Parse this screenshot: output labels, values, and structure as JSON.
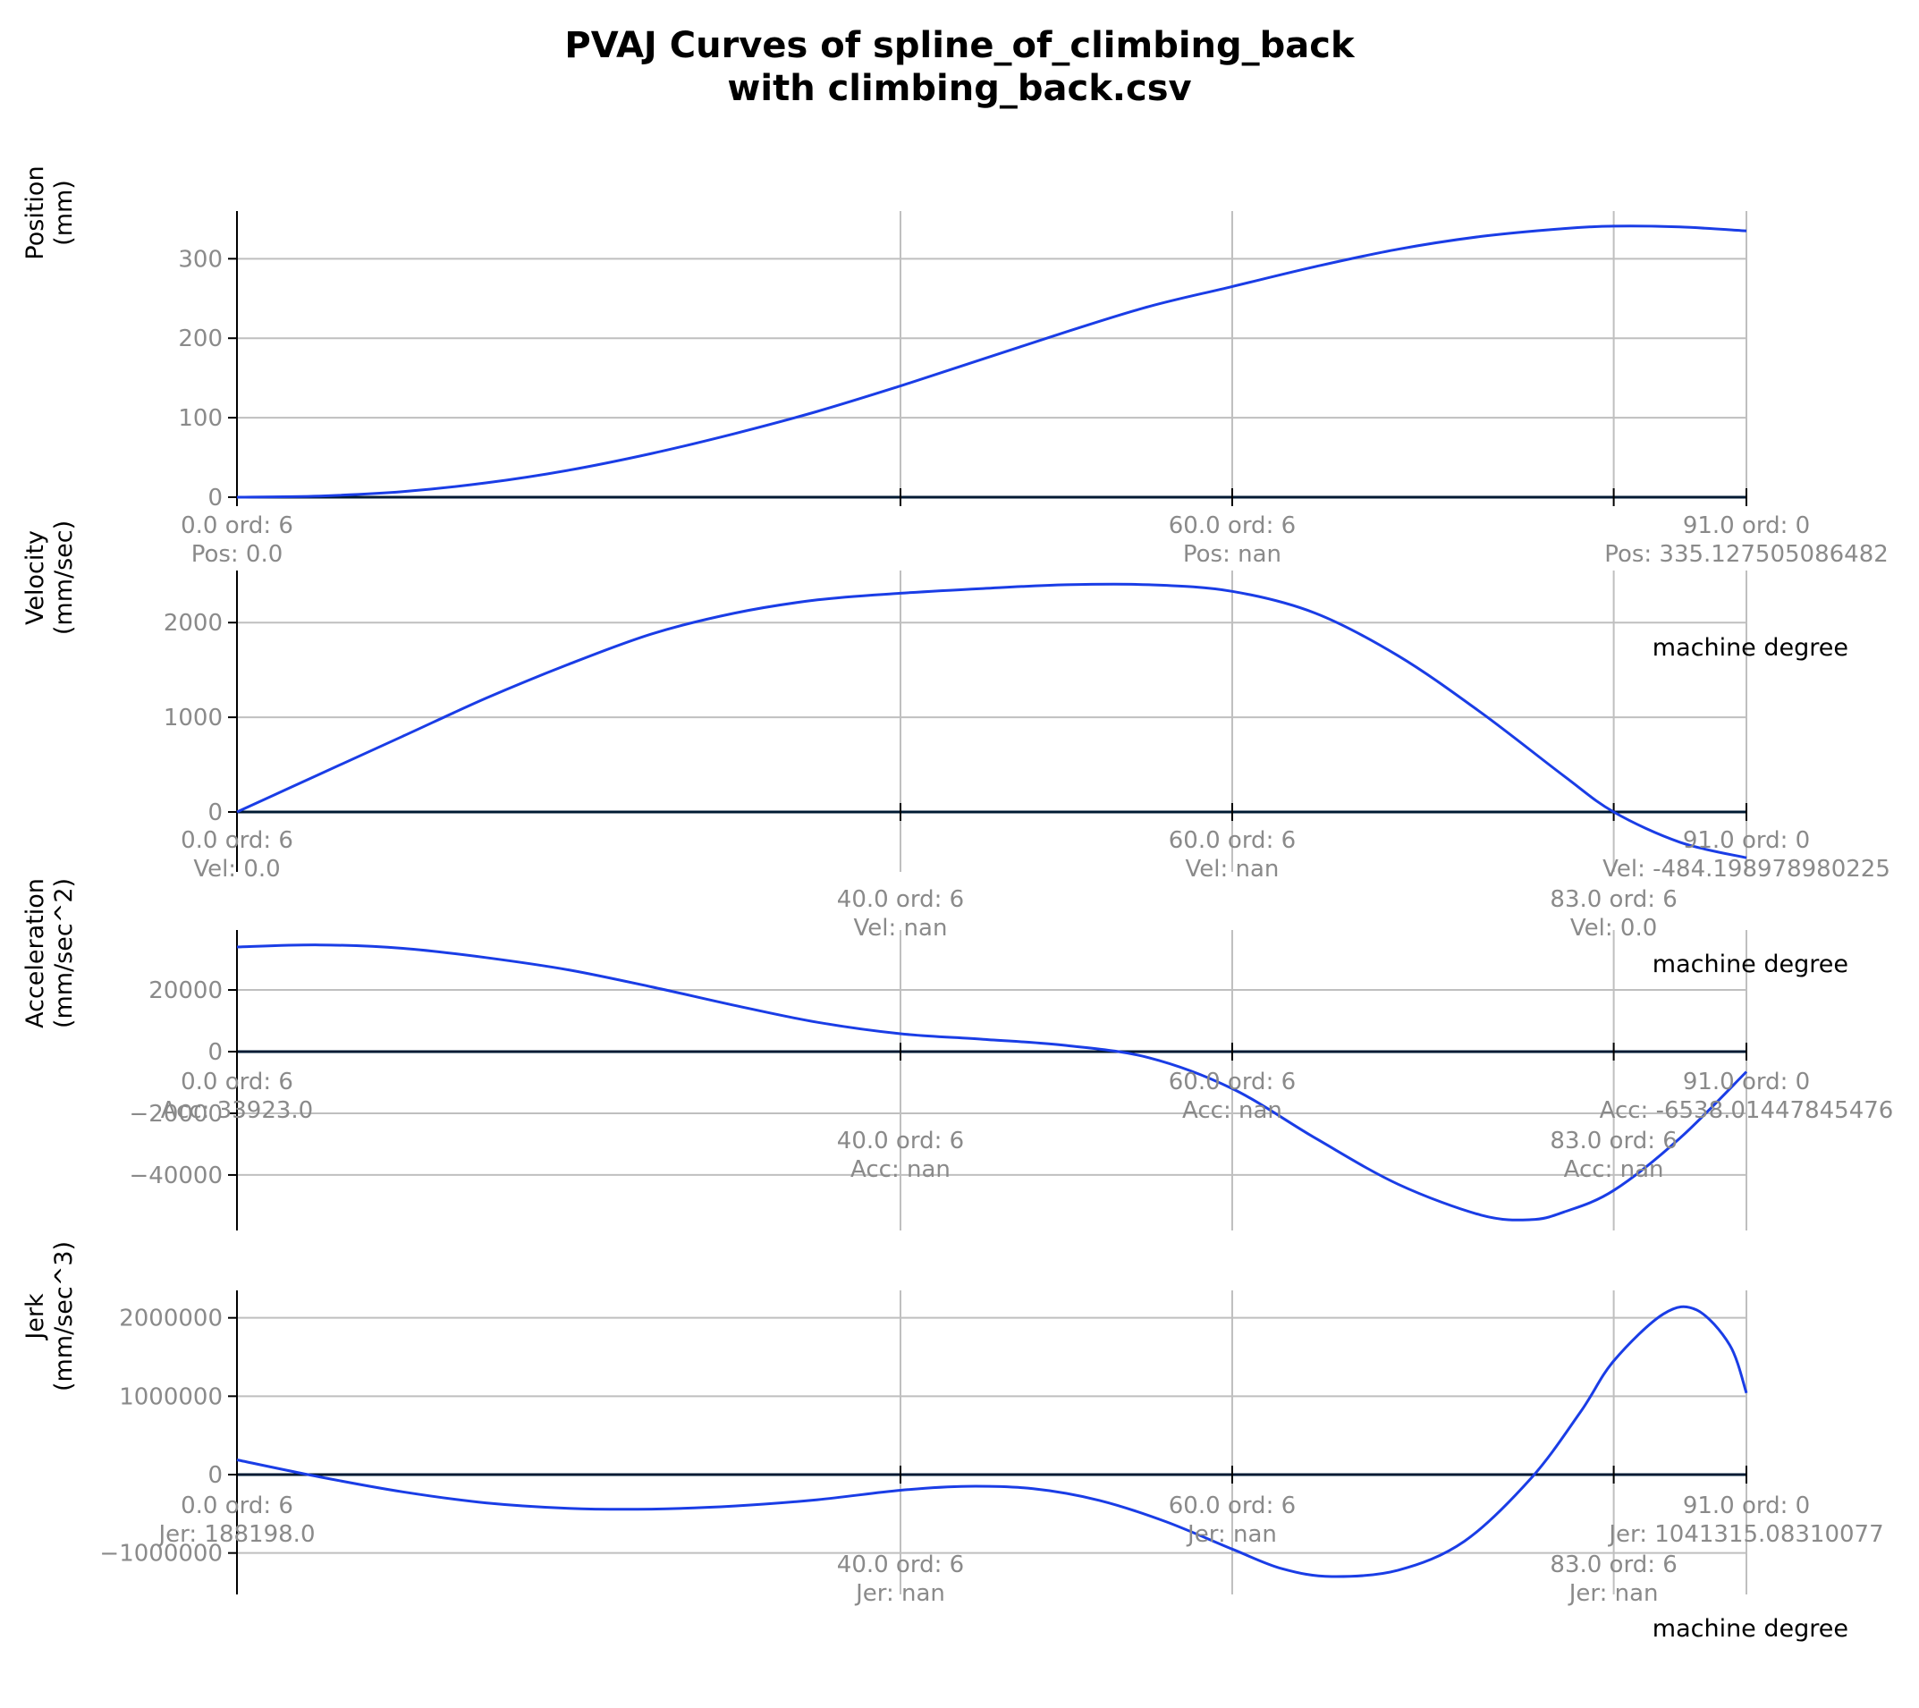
{
  "title_line1": "PVAJ Curves of spline_of_climbing_back",
  "title_line2": "with climbing_back.csv",
  "colors": {
    "curve": "#1a3de6",
    "grid": "#bfbfbf",
    "axis": "#000000",
    "zero_line": "#001a33",
    "label_gray": "#8a8a8a"
  },
  "chart_data": [
    {
      "type": "line",
      "ylabel": [
        "Position",
        "(mm)"
      ],
      "xlabel": "",
      "xlim": [
        0,
        91
      ],
      "ylim": [
        0,
        360
      ],
      "yticks": [
        0,
        100,
        200,
        300
      ],
      "ytick_labels": [
        "0",
        "100",
        "200",
        "300"
      ],
      "grid": true,
      "series": [
        {
          "values": [
            [
              0,
              0
            ],
            [
              5,
              1.5
            ],
            [
              10,
              7
            ],
            [
              15,
              18
            ],
            [
              20,
              34
            ],
            [
              25,
              55
            ],
            [
              30,
              80
            ],
            [
              35,
              108
            ],
            [
              40,
              140
            ],
            [
              45,
              174
            ],
            [
              50,
              208
            ],
            [
              55,
              240
            ],
            [
              60,
              265
            ],
            [
              65,
              290
            ],
            [
              70,
              312
            ],
            [
              75,
              328
            ],
            [
              80,
              338
            ],
            [
              83,
              341
            ],
            [
              87,
              340
            ],
            [
              91,
              335
            ]
          ]
        }
      ],
      "annotations": [
        {
          "x": 0,
          "lines": [
            "0.0 ord: 6",
            "Pos: 0.0"
          ]
        },
        {
          "x": 60,
          "lines": [
            "60.0 ord: 6",
            "Pos: nan"
          ]
        },
        {
          "x": 91,
          "lines": [
            "91.0 ord: 0",
            "Pos: 335.127505086482"
          ]
        }
      ]
    },
    {
      "type": "line",
      "ylabel": [
        "Velocity",
        "(mm/sec)"
      ],
      "xlabel": "machine degree",
      "xlim": [
        0,
        91
      ],
      "ylim": [
        -500,
        2550
      ],
      "yticks": [
        0,
        1000,
        2000
      ],
      "ytick_labels": [
        "0",
        "1000",
        "2000"
      ],
      "grid": true,
      "series": [
        {
          "values": [
            [
              0,
              0
            ],
            [
              5,
              400
            ],
            [
              10,
              800
            ],
            [
              15,
              1200
            ],
            [
              20,
              1560
            ],
            [
              25,
              1880
            ],
            [
              30,
              2100
            ],
            [
              35,
              2240
            ],
            [
              40,
              2310
            ],
            [
              45,
              2360
            ],
            [
              50,
              2400
            ],
            [
              55,
              2400
            ],
            [
              60,
              2330
            ],
            [
              65,
              2100
            ],
            [
              70,
              1650
            ],
            [
              75,
              1050
            ],
            [
              80,
              380
            ],
            [
              83,
              0
            ],
            [
              87,
              -320
            ],
            [
              91,
              -484
            ]
          ]
        }
      ],
      "annotations": [
        {
          "x": 0,
          "lines": [
            "0.0 ord: 6",
            "Vel: 0.0"
          ]
        },
        {
          "x": 60,
          "lines": [
            "60.0 ord: 6",
            "Vel: nan"
          ]
        },
        {
          "x": 91,
          "lines": [
            "91.0 ord: 0",
            "Vel: -484.198978980225"
          ]
        },
        {
          "x": 40,
          "lines": [
            "40.0 ord: 6",
            "Vel: nan"
          ],
          "low": true
        },
        {
          "x": 83,
          "lines": [
            "83.0 ord: 6",
            "Vel: 0.0"
          ],
          "low": true
        }
      ]
    },
    {
      "type": "line",
      "ylabel": [
        "Acceleration",
        "(mm/sec^2)"
      ],
      "xlabel": "machine degree",
      "xlim": [
        0,
        91
      ],
      "ylim": [
        -58000,
        39000
      ],
      "yticks": [
        -40000,
        -20000,
        0,
        20000
      ],
      "ytick_labels": [
        "−40000",
        "−20000",
        "0",
        "20000"
      ],
      "grid": true,
      "series": [
        {
          "values": [
            [
              0,
              33923
            ],
            [
              5,
              34600
            ],
            [
              10,
              33500
            ],
            [
              15,
              30500
            ],
            [
              20,
              26500
            ],
            [
              25,
              21000
            ],
            [
              30,
              15000
            ],
            [
              35,
              9500
            ],
            [
              40,
              5800
            ],
            [
              45,
              4000
            ],
            [
              50,
              2000
            ],
            [
              55,
              -2000
            ],
            [
              60,
              -12000
            ],
            [
              65,
              -28000
            ],
            [
              70,
              -43000
            ],
            [
              75,
              -53000
            ],
            [
              78,
              -54500
            ],
            [
              80,
              -52000
            ],
            [
              83,
              -45000
            ],
            [
              87,
              -28000
            ],
            [
              91,
              -6538
            ]
          ]
        }
      ],
      "annotations": [
        {
          "x": 0,
          "lines": [
            "0.0 ord: 6",
            "Acc: 33923.0"
          ]
        },
        {
          "x": 60,
          "lines": [
            "60.0 ord: 6",
            "Acc: nan"
          ]
        },
        {
          "x": 91,
          "lines": [
            "91.0 ord: 0",
            "Acc: -6538.01447845476"
          ]
        },
        {
          "x": 40,
          "lines": [
            "40.0 ord: 6",
            "Acc: nan"
          ],
          "low": true
        },
        {
          "x": 83,
          "lines": [
            "83.0 ord: 6",
            "Acc: nan"
          ],
          "low": true
        }
      ]
    },
    {
      "type": "line",
      "ylabel": [
        "Jerk",
        "(mm/sec^3)"
      ],
      "xlabel": "machine degree",
      "xlim": [
        0,
        91
      ],
      "ylim": [
        -1500000,
        2350000
      ],
      "yticks": [
        -1000000,
        0,
        1000000,
        2000000
      ],
      "ytick_labels": [
        "−1000000",
        "0",
        "1000000",
        "2000000"
      ],
      "grid": true,
      "series": [
        {
          "values": [
            [
              0,
              188198
            ],
            [
              5,
              -30000
            ],
            [
              10,
              -220000
            ],
            [
              15,
              -360000
            ],
            [
              20,
              -430000
            ],
            [
              25,
              -440000
            ],
            [
              30,
              -400000
            ],
            [
              35,
              -320000
            ],
            [
              40,
              -200000
            ],
            [
              44,
              -150000
            ],
            [
              48,
              -180000
            ],
            [
              52,
              -330000
            ],
            [
              56,
              -600000
            ],
            [
              60,
              -950000
            ],
            [
              63,
              -1200000
            ],
            [
              66,
              -1300000
            ],
            [
              70,
              -1220000
            ],
            [
              74,
              -850000
            ],
            [
              78,
              -50000
            ],
            [
              81,
              800000
            ],
            [
              83,
              1450000
            ],
            [
              86,
              2050000
            ],
            [
              88,
              2100000
            ],
            [
              90,
              1650000
            ],
            [
              91,
              1041315
            ]
          ]
        }
      ],
      "annotations": [
        {
          "x": 0,
          "lines": [
            "0.0 ord: 6",
            "Jer: 188198.0"
          ]
        },
        {
          "x": 60,
          "lines": [
            "60.0 ord: 6",
            "Jer: nan"
          ]
        },
        {
          "x": 91,
          "lines": [
            "91.0 ord: 0",
            "Jer: 1041315.08310077"
          ]
        },
        {
          "x": 40,
          "lines": [
            "40.0 ord: 6",
            "Jer: nan"
          ],
          "low": true
        },
        {
          "x": 83,
          "lines": [
            "83.0 ord: 6",
            "Jer: nan"
          ],
          "low": true
        }
      ]
    }
  ]
}
